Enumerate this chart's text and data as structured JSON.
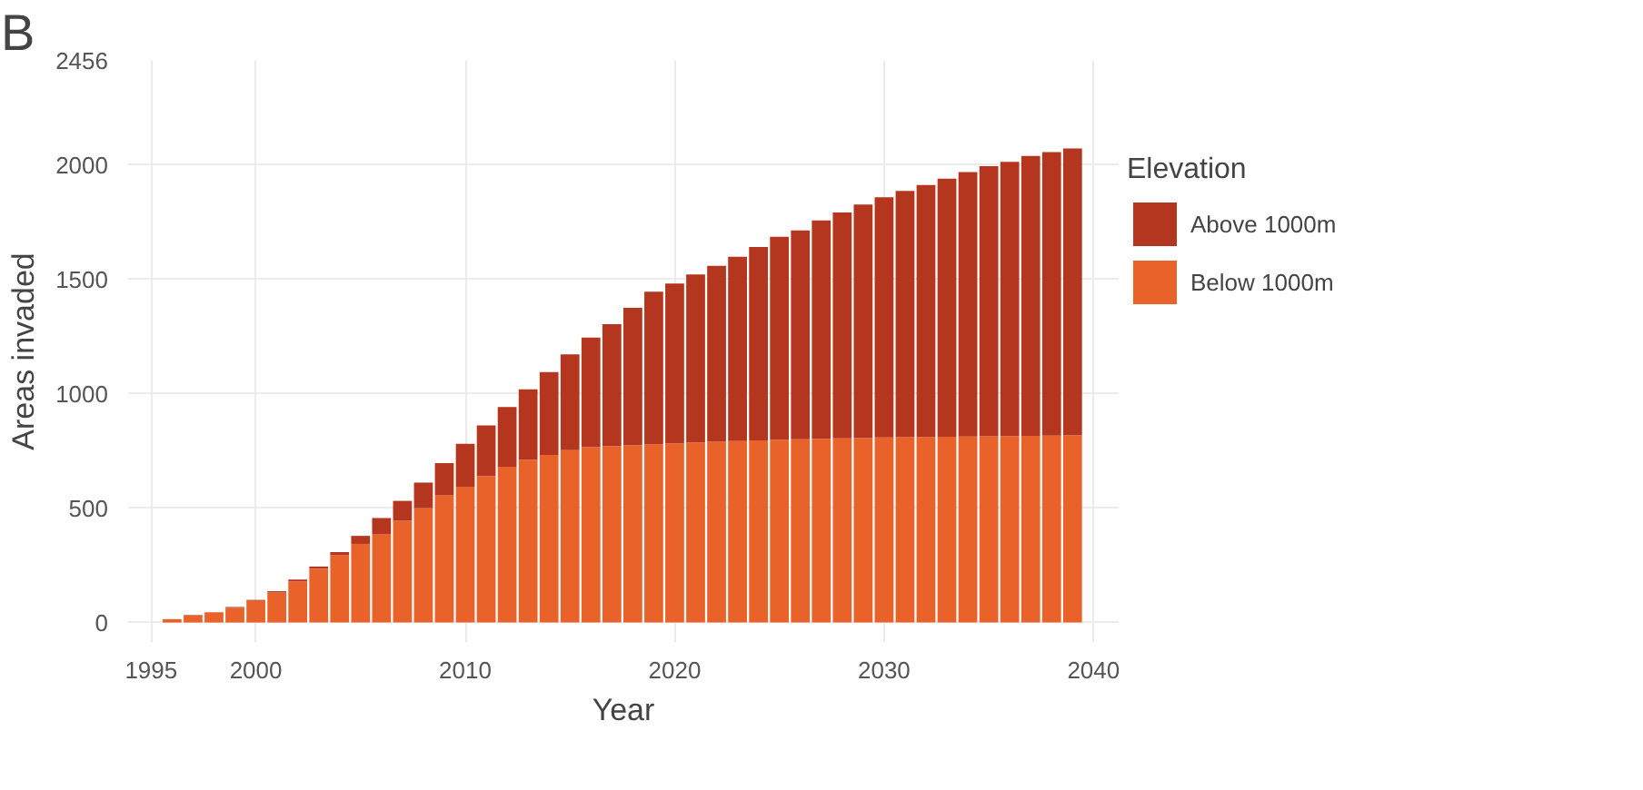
{
  "chart_data": {
    "type": "bar",
    "stacked": true,
    "xlabel": "Year",
    "ylabel": "Areas invaded",
    "legend_title": "Elevation",
    "annotations": [
      "B"
    ],
    "x": [
      1996,
      1997,
      1998,
      1999,
      2000,
      2001,
      2002,
      2003,
      2004,
      2005,
      2006,
      2007,
      2008,
      2009,
      2010,
      2011,
      2012,
      2013,
      2014,
      2015,
      2016,
      2017,
      2018,
      2019,
      2020,
      2021,
      2022,
      2023,
      2024,
      2025,
      2026,
      2027,
      2028,
      2029,
      2030,
      2031,
      2032,
      2033,
      2034,
      2035,
      2036,
      2037,
      2038,
      2039
    ],
    "series": [
      {
        "name": "Below 1000m",
        "color": "#e8622a",
        "values": [
          15,
          31,
          45,
          65,
          95,
          131,
          180,
          235,
          294,
          344,
          386,
          445,
          500,
          556,
          594,
          641,
          681,
          712,
          733,
          754,
          768,
          772,
          776,
          780,
          784,
          787,
          790,
          793,
          796,
          799,
          801,
          803,
          805,
          807,
          809,
          810,
          811,
          812,
          813,
          814,
          815,
          816,
          817,
          818
        ]
      },
      {
        "name": "Above 1000m",
        "color": "#b5361e",
        "values": [
          null,
          2,
          null,
          3,
          4,
          6,
          8,
          10,
          14,
          35,
          71,
          87,
          112,
          141,
          188,
          221,
          261,
          308,
          362,
          419,
          478,
          533,
          600,
          667,
          698,
          735,
          770,
          806,
          846,
          888,
          914,
          955,
          988,
          1021,
          1050,
          1077,
          1102,
          1129,
          1157,
          1181,
          1199,
          1224,
          1240,
          1255
        ]
      }
    ],
    "xlim": [
      1993.9,
      2041.2
    ],
    "xticks": [
      1995,
      2000,
      2010,
      2020,
      2030,
      2040
    ],
    "ylim": [
      -85,
      2456
    ],
    "yticks": [
      0,
      500,
      1000,
      1500,
      2000,
      2456
    ],
    "grid": true,
    "legend": "right"
  }
}
